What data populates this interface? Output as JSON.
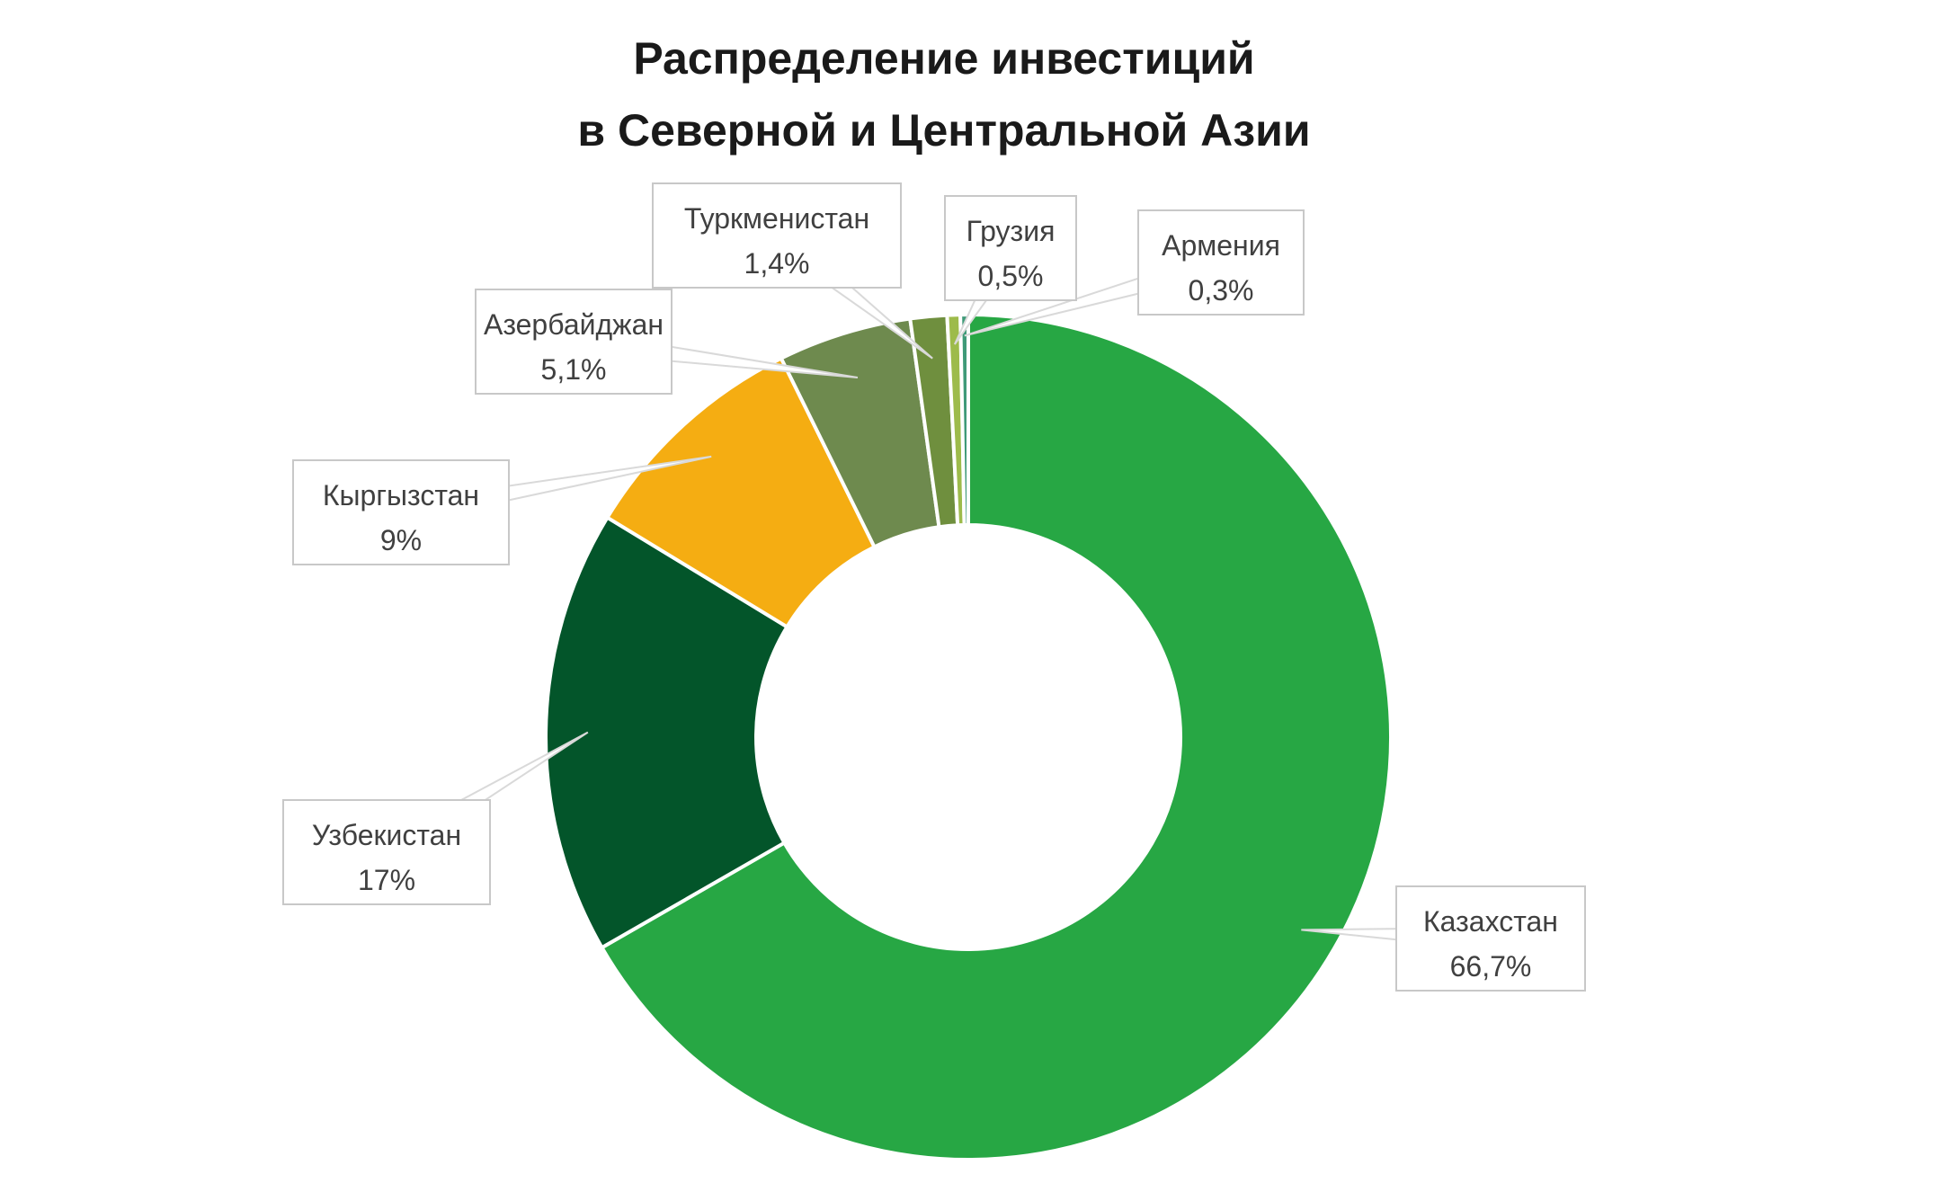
{
  "chart_data": {
    "type": "pie",
    "subtype": "doughnut",
    "title_lines": [
      "Распределение инвестиций",
      "в Северной и Центральной Азии"
    ],
    "slices": [
      {
        "name": "Казахстан",
        "value": 66.7,
        "label": "66,7%",
        "color": "#27a744"
      },
      {
        "name": "Узбекистан",
        "value": 17,
        "label": "17%",
        "color": "#03552a"
      },
      {
        "name": "Кыргызстан",
        "value": 9,
        "label": "9%",
        "color": "#f5ad12"
      },
      {
        "name": "Азербайджан",
        "value": 5.1,
        "label": "5,1%",
        "color": "#6e8a4e"
      },
      {
        "name": "Туркменистан",
        "value": 1.4,
        "label": "1,4%",
        "color": "#6f8f3e"
      },
      {
        "name": "Грузия",
        "value": 0.5,
        "label": "0,5%",
        "color": "#9dbb4b"
      },
      {
        "name": "Армения",
        "value": 0.3,
        "label": "0,3%",
        "color": "#3f9a78"
      }
    ],
    "legend": "none",
    "data_labels": "callouts"
  }
}
